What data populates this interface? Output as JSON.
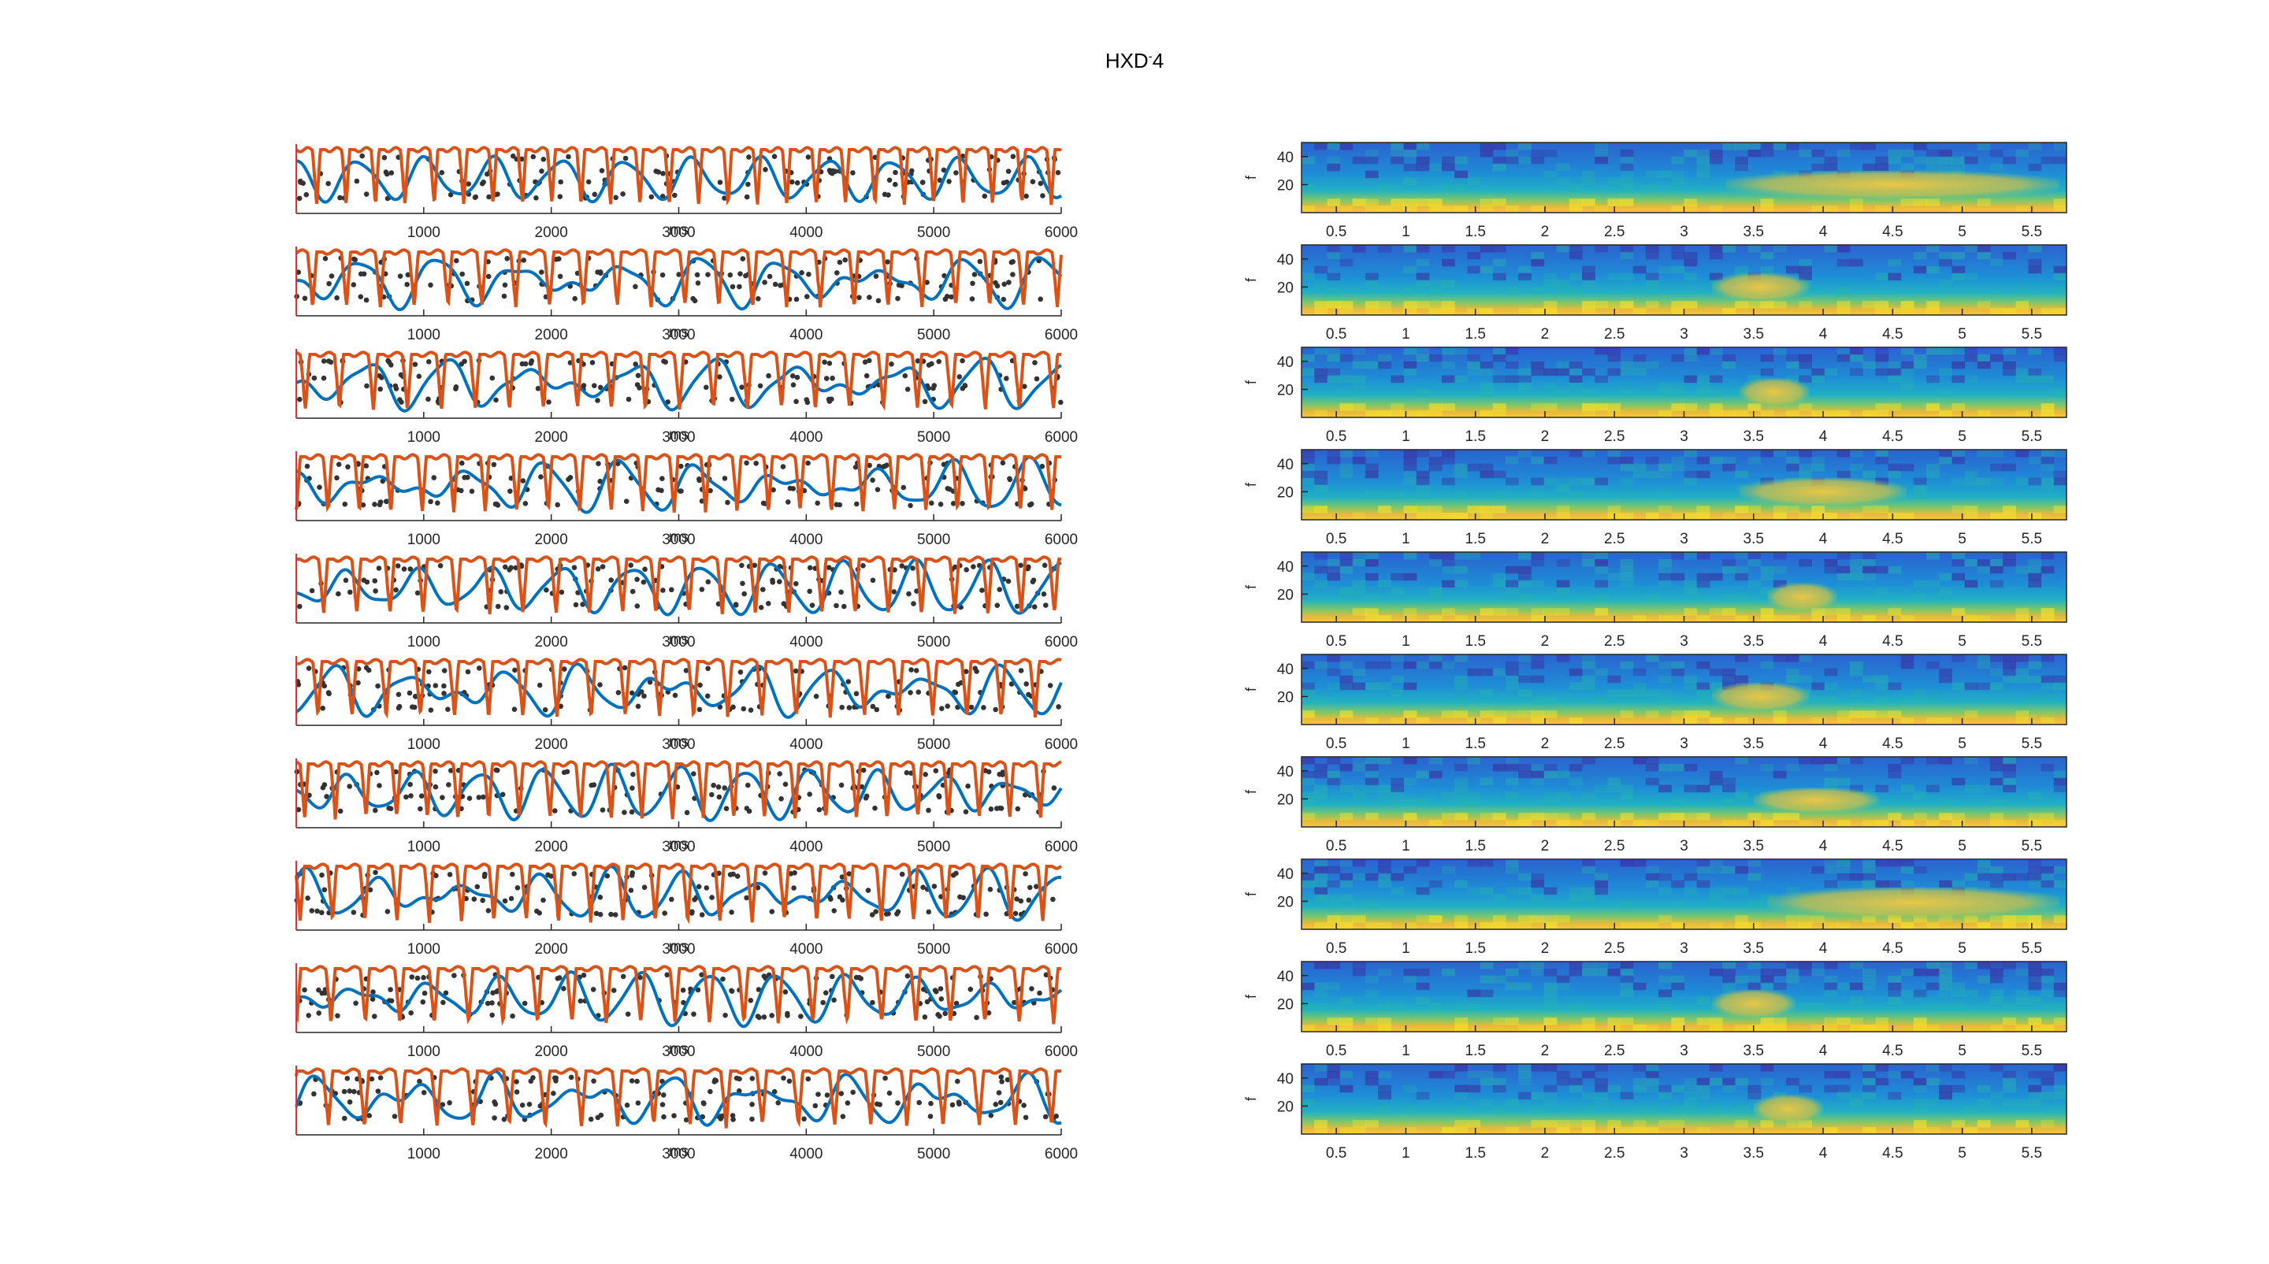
{
  "figure": {
    "title_main": "HXD",
    "title_sup": "-",
    "title_tail": "4"
  },
  "chart_data": [
    {
      "type": "line",
      "panel": "left",
      "rows": 10,
      "description_of_series": [
        "raw signal dots",
        "smoothed signal",
        "envelope"
      ],
      "series_colors": {
        "dots": "#333333",
        "blue": "#0072BD",
        "orange": "#D95319"
      },
      "xlim": [
        0,
        6000
      ],
      "xticks": [
        1000,
        2000,
        3000,
        4000,
        5000,
        6000
      ],
      "xlabel": "ms",
      "axis_left_color": "#e03030"
    },
    {
      "type": "heatmap",
      "panel": "right",
      "rows": 10,
      "xlim": [
        0.25,
        5.75
      ],
      "xticks": [
        "0.5",
        "1",
        "1.5",
        "2",
        "2.5",
        "3",
        "3.5",
        "4",
        "4.5",
        "5",
        "5.5"
      ],
      "ylim": [
        0,
        50
      ],
      "yticks": [
        "20",
        "40"
      ],
      "ylabel": "f",
      "colormap": "parula",
      "hotspots": [
        {
          "row": 0,
          "t": [
            3.3,
            5.7
          ],
          "f": [
            10,
            30
          ]
        },
        {
          "row": 1,
          "t": [
            3.2,
            3.9
          ],
          "f": [
            10,
            30
          ]
        },
        {
          "row": 2,
          "t": [
            3.4,
            3.9
          ],
          "f": [
            8,
            28
          ]
        },
        {
          "row": 3,
          "t": [
            3.4,
            4.6
          ],
          "f": [
            10,
            30
          ]
        },
        {
          "row": 4,
          "t": [
            3.6,
            4.1
          ],
          "f": [
            8,
            28
          ]
        },
        {
          "row": 5,
          "t": [
            3.2,
            3.9
          ],
          "f": [
            10,
            30
          ]
        },
        {
          "row": 6,
          "t": [
            3.5,
            4.4
          ],
          "f": [
            10,
            28
          ]
        },
        {
          "row": 7,
          "t": [
            3.6,
            5.7
          ],
          "f": [
            8,
            30
          ]
        },
        {
          "row": 8,
          "t": [
            3.2,
            3.8
          ],
          "f": [
            10,
            30
          ]
        },
        {
          "row": 9,
          "t": [
            3.5,
            4.0
          ],
          "f": [
            8,
            28
          ]
        }
      ]
    }
  ]
}
